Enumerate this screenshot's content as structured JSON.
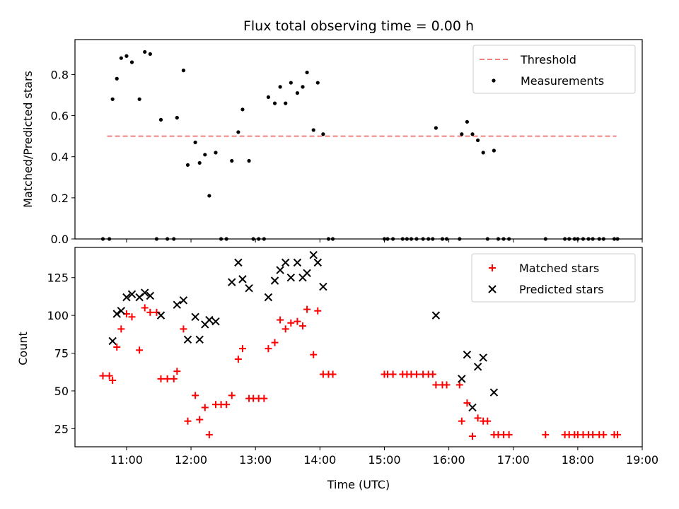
{
  "chart_data": [
    {
      "type": "scatter",
      "title": "Flux total observing time = 0.00 h",
      "xlabel": "",
      "ylabel": "Matched/Predicted stars",
      "xlim": [
        "10:12",
        "19:00"
      ],
      "ylim": [
        0,
        0.97
      ],
      "yticks": [
        0.0,
        0.2,
        0.4,
        0.6,
        0.8
      ],
      "ytick_labels": [
        "0.0",
        "0.2",
        "0.4",
        "0.6",
        "0.8"
      ],
      "legend_position": "top-right",
      "threshold": {
        "name": "Threshold",
        "value": 0.5,
        "x_range": [
          "10:42",
          "18:36"
        ],
        "color": "#f08080",
        "style": "dashed"
      },
      "series": [
        {
          "name": "Measurements",
          "color": "#000000",
          "marker": "dot",
          "points": [
            [
              "10:38",
              0
            ],
            [
              "10:44",
              0
            ],
            [
              "10:47",
              0.68
            ],
            [
              "10:51",
              0.78
            ],
            [
              "10:55",
              0.88
            ],
            [
              "11:00",
              0.89
            ],
            [
              "11:05",
              0.86
            ],
            [
              "11:12",
              0.68
            ],
            [
              "11:17",
              0.91
            ],
            [
              "11:22",
              0.9
            ],
            [
              "11:28",
              0
            ],
            [
              "11:32",
              0.58
            ],
            [
              "11:38",
              0
            ],
            [
              "11:44",
              0
            ],
            [
              "11:47",
              0.59
            ],
            [
              "11:53",
              0.82
            ],
            [
              "11:57",
              0.36
            ],
            [
              "12:04",
              0.47
            ],
            [
              "12:08",
              0.37
            ],
            [
              "12:13",
              0.41
            ],
            [
              "12:17",
              0.21
            ],
            [
              "12:23",
              0.42
            ],
            [
              "12:28",
              0
            ],
            [
              "12:33",
              0
            ],
            [
              "12:38",
              0.38
            ],
            [
              "12:44",
              0.52
            ],
            [
              "12:48",
              0.63
            ],
            [
              "12:54",
              0.38
            ],
            [
              "12:58",
              0
            ],
            [
              "13:03",
              0
            ],
            [
              "13:08",
              0
            ],
            [
              "13:12",
              0.69
            ],
            [
              "13:18",
              0.66
            ],
            [
              "13:23",
              0.74
            ],
            [
              "13:28",
              0.66
            ],
            [
              "13:33",
              0.76
            ],
            [
              "13:39",
              0.71
            ],
            [
              "13:44",
              0.74
            ],
            [
              "13:48",
              0.81
            ],
            [
              "13:54",
              0.53
            ],
            [
              "13:58",
              0.76
            ],
            [
              "14:03",
              0.51
            ],
            [
              "14:08",
              0
            ],
            [
              "14:12",
              0
            ],
            [
              "15:00",
              0
            ],
            [
              "15:03",
              0
            ],
            [
              "15:08",
              0
            ],
            [
              "15:17",
              0
            ],
            [
              "15:21",
              0
            ],
            [
              "15:25",
              0
            ],
            [
              "15:30",
              0
            ],
            [
              "15:36",
              0
            ],
            [
              "15:41",
              0
            ],
            [
              "15:45",
              0
            ],
            [
              "15:48",
              0.54
            ],
            [
              "15:54",
              0
            ],
            [
              "15:58",
              0
            ],
            [
              "16:10",
              0
            ],
            [
              "16:12",
              0.51
            ],
            [
              "16:17",
              0.57
            ],
            [
              "16:22",
              0.51
            ],
            [
              "16:27",
              0.48
            ],
            [
              "16:32",
              0.42
            ],
            [
              "16:36",
              0
            ],
            [
              "16:42",
              0.43
            ],
            [
              "16:46",
              0
            ],
            [
              "16:51",
              0
            ],
            [
              "16:56",
              0
            ],
            [
              "17:30",
              0
            ],
            [
              "17:48",
              0
            ],
            [
              "17:52",
              0
            ],
            [
              "17:57",
              0
            ],
            [
              "18:00",
              0
            ],
            [
              "18:05",
              0
            ],
            [
              "18:10",
              0
            ],
            [
              "18:14",
              0
            ],
            [
              "18:20",
              0
            ],
            [
              "18:24",
              0
            ],
            [
              "18:34",
              0
            ],
            [
              "18:37",
              0
            ]
          ]
        }
      ]
    },
    {
      "type": "scatter",
      "title": "",
      "xlabel": "Time (UTC)",
      "ylabel": "Count",
      "xlim": [
        "10:12",
        "19:00"
      ],
      "ylim": [
        13,
        145
      ],
      "yticks": [
        25,
        50,
        75,
        100,
        125
      ],
      "ytick_labels": [
        "25",
        "50",
        "75",
        "100",
        "125"
      ],
      "xticks": [
        "11:00",
        "12:00",
        "13:00",
        "14:00",
        "15:00",
        "16:00",
        "17:00",
        "18:00",
        "19:00"
      ],
      "legend_position": "top-right",
      "series": [
        {
          "name": "Matched stars",
          "color": "#ff0000",
          "marker": "plus",
          "points": [
            [
              "10:38",
              60
            ],
            [
              "10:44",
              60
            ],
            [
              "10:47",
              57
            ],
            [
              "10:51",
              79
            ],
            [
              "10:55",
              91
            ],
            [
              "11:00",
              101
            ],
            [
              "11:05",
              99
            ],
            [
              "11:12",
              77
            ],
            [
              "11:17",
              105
            ],
            [
              "11:22",
              102
            ],
            [
              "11:28",
              102
            ],
            [
              "11:32",
              58
            ],
            [
              "11:38",
              58
            ],
            [
              "11:44",
              58
            ],
            [
              "11:47",
              63
            ],
            [
              "11:53",
              91
            ],
            [
              "11:57",
              30
            ],
            [
              "12:04",
              47
            ],
            [
              "12:08",
              31
            ],
            [
              "12:13",
              39
            ],
            [
              "12:17",
              21
            ],
            [
              "12:23",
              41
            ],
            [
              "12:28",
              41
            ],
            [
              "12:33",
              41
            ],
            [
              "12:38",
              47
            ],
            [
              "12:44",
              71
            ],
            [
              "12:48",
              78
            ],
            [
              "12:54",
              45
            ],
            [
              "12:58",
              45
            ],
            [
              "13:03",
              45
            ],
            [
              "13:08",
              45
            ],
            [
              "13:12",
              78
            ],
            [
              "13:18",
              82
            ],
            [
              "13:23",
              97
            ],
            [
              "13:28",
              91
            ],
            [
              "13:33",
              95
            ],
            [
              "13:39",
              96
            ],
            [
              "13:44",
              93
            ],
            [
              "13:48",
              104
            ],
            [
              "13:54",
              74
            ],
            [
              "13:58",
              103
            ],
            [
              "14:03",
              61
            ],
            [
              "14:08",
              61
            ],
            [
              "14:12",
              61
            ],
            [
              "15:00",
              61
            ],
            [
              "15:03",
              61
            ],
            [
              "15:08",
              61
            ],
            [
              "15:17",
              61
            ],
            [
              "15:21",
              61
            ],
            [
              "15:25",
              61
            ],
            [
              "15:30",
              61
            ],
            [
              "15:36",
              61
            ],
            [
              "15:41",
              61
            ],
            [
              "15:45",
              61
            ],
            [
              "15:48",
              54
            ],
            [
              "15:54",
              54
            ],
            [
              "15:58",
              54
            ],
            [
              "16:10",
              54
            ],
            [
              "16:12",
              30
            ],
            [
              "16:17",
              42
            ],
            [
              "16:22",
              20
            ],
            [
              "16:27",
              32
            ],
            [
              "16:32",
              30
            ],
            [
              "16:36",
              30
            ],
            [
              "16:42",
              21
            ],
            [
              "16:46",
              21
            ],
            [
              "16:51",
              21
            ],
            [
              "16:56",
              21
            ],
            [
              "17:30",
              21
            ],
            [
              "17:48",
              21
            ],
            [
              "17:52",
              21
            ],
            [
              "17:57",
              21
            ],
            [
              "18:00",
              21
            ],
            [
              "18:05",
              21
            ],
            [
              "18:10",
              21
            ],
            [
              "18:14",
              21
            ],
            [
              "18:20",
              21
            ],
            [
              "18:24",
              21
            ],
            [
              "18:34",
              21
            ],
            [
              "18:37",
              21
            ]
          ]
        },
        {
          "name": "Predicted stars",
          "color": "#000000",
          "marker": "x",
          "points": [
            [
              "10:47",
              83
            ],
            [
              "10:51",
              101
            ],
            [
              "10:55",
              103
            ],
            [
              "11:00",
              112
            ],
            [
              "11:05",
              114
            ],
            [
              "11:12",
              112
            ],
            [
              "11:17",
              115
            ],
            [
              "11:22",
              113
            ],
            [
              "11:32",
              100
            ],
            [
              "11:47",
              107
            ],
            [
              "11:53",
              110
            ],
            [
              "11:57",
              84
            ],
            [
              "12:04",
              99
            ],
            [
              "12:08",
              84
            ],
            [
              "12:13",
              94
            ],
            [
              "12:17",
              97
            ],
            [
              "12:23",
              96
            ],
            [
              "12:38",
              122
            ],
            [
              "12:44",
              135
            ],
            [
              "12:48",
              124
            ],
            [
              "12:54",
              118
            ],
            [
              "13:12",
              112
            ],
            [
              "13:18",
              123
            ],
            [
              "13:23",
              130
            ],
            [
              "13:28",
              135
            ],
            [
              "13:33",
              125
            ],
            [
              "13:39",
              135
            ],
            [
              "13:44",
              125
            ],
            [
              "13:48",
              128
            ],
            [
              "13:54",
              140
            ],
            [
              "13:58",
              135
            ],
            [
              "14:03",
              119
            ],
            [
              "15:48",
              100
            ],
            [
              "16:12",
              58
            ],
            [
              "16:17",
              74
            ],
            [
              "16:22",
              39
            ],
            [
              "16:27",
              66
            ],
            [
              "16:32",
              72
            ],
            [
              "16:42",
              49
            ]
          ]
        }
      ]
    }
  ]
}
